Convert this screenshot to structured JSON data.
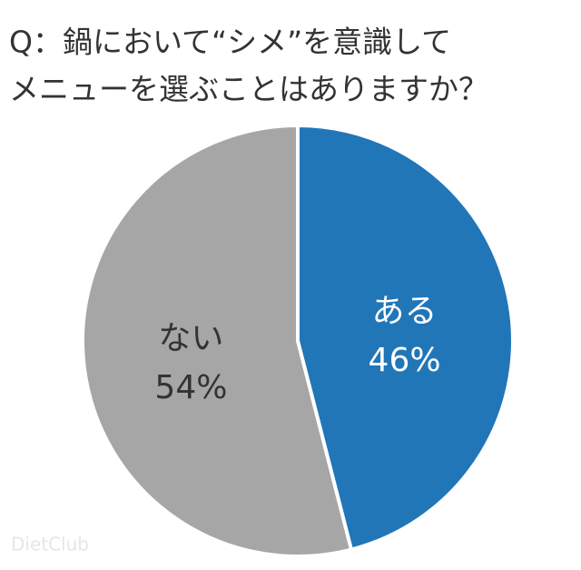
{
  "chart_data": {
    "type": "pie",
    "title": [
      "Q：鍋において“シメ”を意識して",
      "メニューを選ぶことはありますか？"
    ],
    "categories": [
      "ある",
      "ない"
    ],
    "values": [
      46,
      54
    ],
    "value_labels": [
      "46%",
      "54%"
    ],
    "colors": [
      "#2176b8",
      "#a6a6a6"
    ],
    "label_colors": [
      "#ffffff",
      "#333333"
    ],
    "watermark": "DietClub"
  }
}
